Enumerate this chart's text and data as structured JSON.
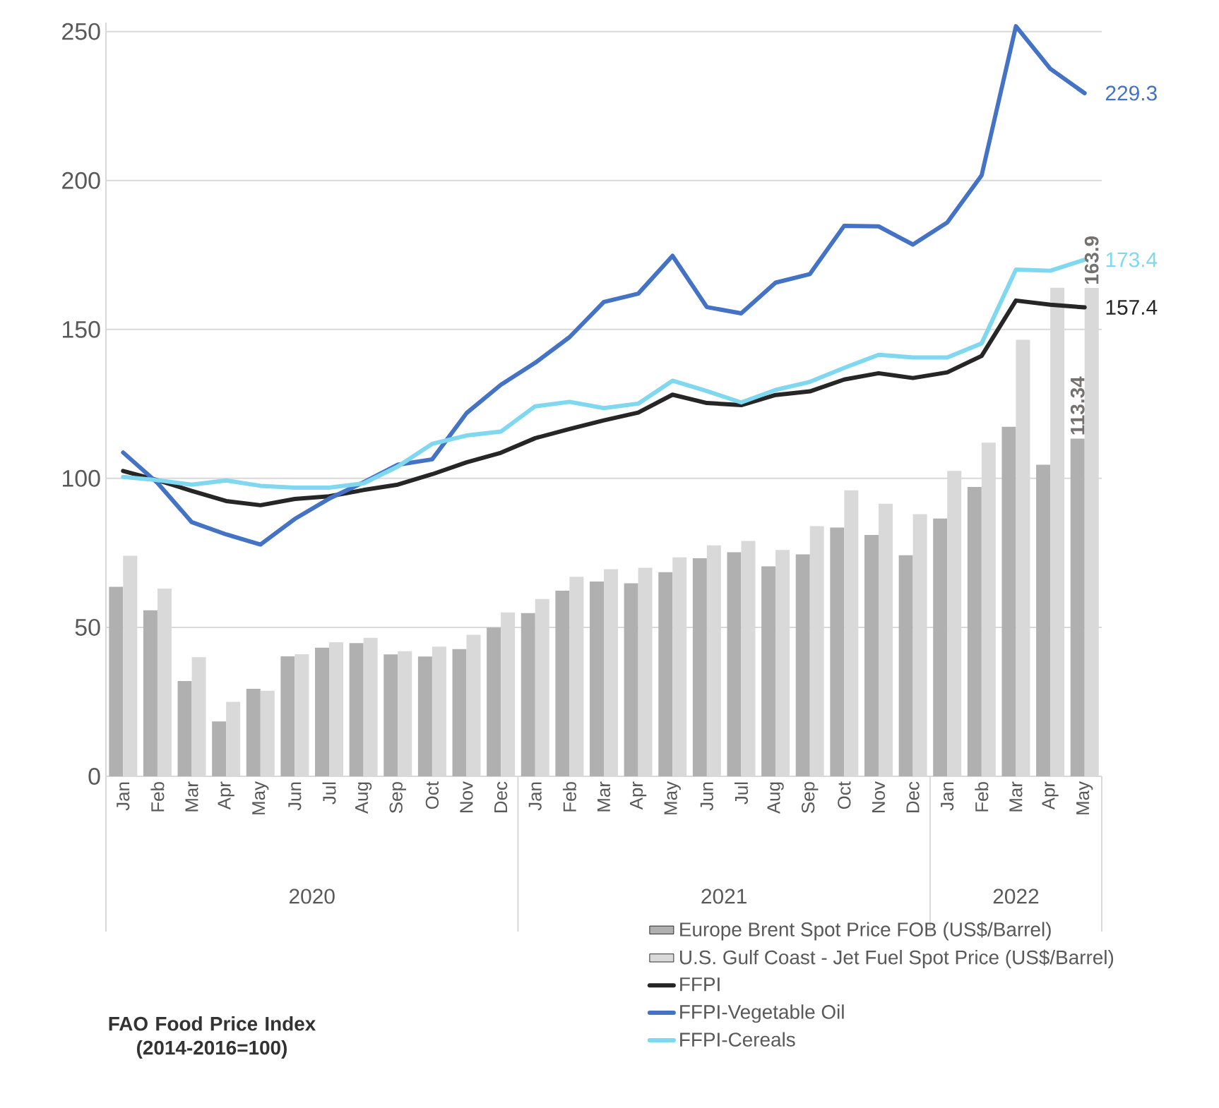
{
  "chart_data": {
    "type": "bar",
    "title": "FAO Food Price Index (2014-2016=100)",
    "categories": [
      "Jan",
      "Feb",
      "Mar",
      "Apr",
      "May",
      "Jun",
      "Jul",
      "Aug",
      "Sep",
      "Oct",
      "Nov",
      "Dec",
      "Jan",
      "Feb",
      "Mar",
      "Apr",
      "May",
      "Jun",
      "Jul",
      "Aug",
      "Sep",
      "Oct",
      "Nov",
      "Dec",
      "Jan",
      "Feb",
      "Mar",
      "Apr",
      "May"
    ],
    "series": [
      {
        "name": "Europe Brent Spot Price FOB (US$/Barrel)",
        "color": "#b0b0b0",
        "values": [
          63.6,
          55.7,
          32.0,
          18.4,
          29.4,
          40.3,
          43.2,
          44.7,
          40.9,
          40.2,
          42.7,
          49.9,
          54.8,
          62.3,
          65.4,
          64.8,
          68.5,
          73.2,
          75.2,
          70.5,
          74.5,
          83.5,
          81.0,
          74.2,
          86.5,
          97.1,
          117.3,
          104.6,
          113.34
        ],
        "value_labels": [
          null,
          null,
          null,
          null,
          null,
          null,
          null,
          null,
          null,
          null,
          null,
          null,
          null,
          null,
          null,
          null,
          null,
          null,
          null,
          null,
          null,
          null,
          null,
          null,
          null,
          null,
          null,
          null,
          "113.34"
        ]
      },
      {
        "name": "U.S. Gulf Coast - Jet Fuel Spot Price (US$/Barrel)",
        "color": "#d9d9d9",
        "values": [
          74,
          63,
          40,
          25,
          28.7,
          41,
          45,
          46.5,
          42,
          43.5,
          47.5,
          55,
          59.5,
          67,
          69.5,
          70,
          73.5,
          77.5,
          79,
          76,
          84,
          96,
          91.5,
          88,
          102.5,
          112,
          146.5,
          164,
          163.9
        ],
        "value_labels": [
          null,
          null,
          null,
          null,
          null,
          null,
          null,
          null,
          null,
          null,
          null,
          null,
          null,
          null,
          null,
          null,
          null,
          null,
          null,
          null,
          null,
          null,
          null,
          null,
          null,
          null,
          null,
          null,
          "163.9"
        ]
      },
      {
        "name": "FFPI",
        "type": "line",
        "color": "#262626",
        "values": [
          102.5,
          99.4,
          95.8,
          92.4,
          91.0,
          93.1,
          94.0,
          96.1,
          97.9,
          101.4,
          105.4,
          108.6,
          113.5,
          116.6,
          119.5,
          122.1,
          128.1,
          125.3,
          124.6,
          128.0,
          129.2,
          133.2,
          135.3,
          133.7,
          135.6,
          141.1,
          159.7,
          158.3,
          157.4
        ],
        "value_labels": [
          null,
          null,
          null,
          null,
          null,
          null,
          null,
          null,
          null,
          null,
          null,
          null,
          null,
          null,
          null,
          null,
          null,
          null,
          null,
          null,
          null,
          null,
          null,
          null,
          null,
          null,
          null,
          null,
          "157.4"
        ]
      },
      {
        "name": "FFPI-Vegetable Oil",
        "type": "line",
        "color": "#4472c4",
        "values": [
          108.7,
          98.5,
          85.3,
          81.2,
          77.8,
          86.4,
          93.2,
          98.7,
          104.6,
          106.4,
          121.9,
          131.4,
          138.8,
          147.4,
          159.2,
          162.0,
          174.7,
          157.5,
          155.4,
          165.7,
          168.6,
          184.8,
          184.6,
          178.5,
          185.9,
          201.7,
          251.8,
          237.5,
          229.3
        ],
        "value_labels": [
          null,
          null,
          null,
          null,
          null,
          null,
          null,
          null,
          null,
          null,
          null,
          null,
          null,
          null,
          null,
          null,
          null,
          null,
          null,
          null,
          null,
          null,
          null,
          null,
          null,
          null,
          null,
          null,
          "229.3"
        ]
      },
      {
        "name": "FFPI-Cereals",
        "type": "line",
        "color": "#7fd8f0",
        "values": [
          100.5,
          99.4,
          97.9,
          99.3,
          97.5,
          96.9,
          96.9,
          98.3,
          104.0,
          111.6,
          114.4,
          115.7,
          124.2,
          125.7,
          123.6,
          125.1,
          132.8,
          129.3,
          125.5,
          129.7,
          132.4,
          137.1,
          141.5,
          140.6,
          140.6,
          145.3,
          170.1,
          169.7,
          173.4
        ],
        "value_labels": [
          null,
          null,
          null,
          null,
          null,
          null,
          null,
          null,
          null,
          null,
          null,
          null,
          null,
          null,
          null,
          null,
          null,
          null,
          null,
          null,
          null,
          null,
          null,
          null,
          null,
          null,
          null,
          null,
          "173.4"
        ]
      }
    ],
    "ylim": [
      0,
      253
    ],
    "yticks": [
      0,
      50,
      100,
      150,
      200,
      250
    ],
    "grid": "y",
    "legend": "bottom",
    "annotations": [
      "2020",
      "2021",
      "2022"
    ]
  }
}
